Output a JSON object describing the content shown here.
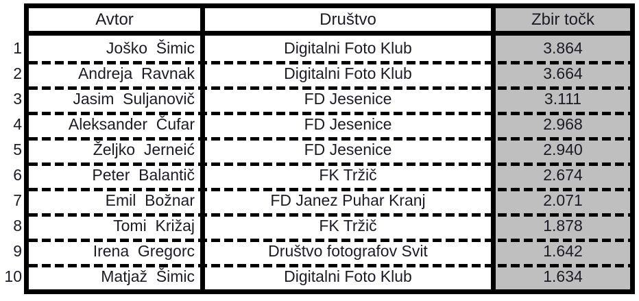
{
  "table": {
    "headers": {
      "avtor": "Avtor",
      "drustvo": "Društvo",
      "zbir": "Zbir točk"
    },
    "rows": [
      {
        "rank": "1",
        "avtor": "Joško  Šimic",
        "drustvo": "Digitalni Foto Klub",
        "zbir": "3.864"
      },
      {
        "rank": "2",
        "avtor": "Andreja  Ravnak",
        "drustvo": "Digitalni Foto Klub",
        "zbir": "3.664"
      },
      {
        "rank": "3",
        "avtor": "Jasim  Suljanovič",
        "drustvo": "FD Jesenice",
        "zbir": "3.111"
      },
      {
        "rank": "4",
        "avtor": "Aleksander  Čufar",
        "drustvo": "FD Jesenice",
        "zbir": "2.968"
      },
      {
        "rank": "5",
        "avtor": "Željko  Jerneić",
        "drustvo": "FD Jesenice",
        "zbir": "2.940"
      },
      {
        "rank": "6",
        "avtor": "Peter  Balantič",
        "drustvo": "FK Tržič",
        "zbir": "2.674"
      },
      {
        "rank": "7",
        "avtor": "Emil  Božnar",
        "drustvo": "FD Janez Puhar Kranj",
        "zbir": "2.071"
      },
      {
        "rank": "8",
        "avtor": "Tomi  Križaj",
        "drustvo": "FK Tržič",
        "zbir": "1.878"
      },
      {
        "rank": "9",
        "avtor": "Irena  Gregorc",
        "drustvo": "Društvo fotografov Svit",
        "zbir": "1.642"
      },
      {
        "rank": "10",
        "avtor": "Matjaž  Šimic",
        "drustvo": "Digitalni Foto Klub",
        "zbir": "1.634"
      }
    ]
  },
  "colors": {
    "score_column_fill": "#bfbfbf",
    "border": "#000000",
    "text": "#1b1b25",
    "background": "#ffffff"
  }
}
